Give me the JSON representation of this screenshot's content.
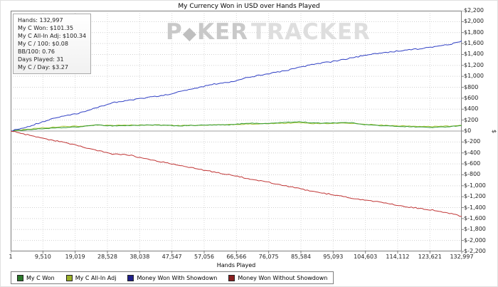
{
  "title": "My Currency Won in USD over Hands Played",
  "watermark": {
    "p1": "P",
    "diamond": "◆",
    "p2": "KER",
    "p3": "TRACKER"
  },
  "stats_box": {
    "lines": [
      "Hands: 132,997",
      "My C Won: $101.35",
      "My C All-In Adj: $100.34",
      "My C / 100: $0.08",
      "BB/100: 0.76",
      "Days Played: 31",
      "My C / Day: $3.27"
    ]
  },
  "axes": {
    "x_label": "Hands Played",
    "y_label": "$",
    "x_tick_labels": [
      "1",
      "9,510",
      "19,019",
      "28,528",
      "38,038",
      "47,547",
      "57,056",
      "66,566",
      "76,075",
      "85,584",
      "95,093",
      "104,603",
      "114,112",
      "123,621",
      "132,997"
    ],
    "x_tick_values": [
      1,
      9510,
      19019,
      28528,
      38038,
      47547,
      57056,
      66566,
      76075,
      85584,
      95093,
      104603,
      114112,
      123621,
      132997
    ],
    "y_tick_labels": [
      "$2,200",
      "$2,000",
      "$1,800",
      "$1,600",
      "$1,400",
      "$1,200",
      "$1,000",
      "$800",
      "$600",
      "$400",
      "$200",
      "$0",
      "$-200",
      "$-400",
      "$-600",
      "$-800",
      "$-1,000",
      "$-1,200",
      "$-1,400",
      "$-1,600",
      "$-1,800",
      "$-2,000",
      "$-2,200"
    ]
  },
  "legend": [
    {
      "label": "My C Won",
      "color": "#2d7a2d"
    },
    {
      "label": "My C All-In Adj",
      "color": "#9bb02a"
    },
    {
      "label": "Money Won With Showdown",
      "color": "#20208a"
    },
    {
      "label": "Money Won Without Showdown",
      "color": "#8a2020"
    }
  ],
  "chart_data": {
    "type": "line",
    "title": "My Currency Won in USD over Hands Played",
    "xlabel": "Hands Played",
    "ylabel": "$",
    "xlim": [
      1,
      132997
    ],
    "ylim": [
      -2200,
      2200
    ],
    "grid": true,
    "legend_position": "bottom-left",
    "x": [
      1,
      5000,
      10000,
      15000,
      20000,
      25000,
      30000,
      35000,
      40000,
      45000,
      50000,
      55000,
      60000,
      65000,
      70000,
      75000,
      80000,
      85000,
      90000,
      95000,
      100000,
      105000,
      110000,
      115000,
      120000,
      125000,
      130000,
      132997
    ],
    "series": [
      {
        "name": "My C Won",
        "color": "#339933",
        "values": [
          0,
          25,
          45,
          60,
          75,
          110,
          95,
          100,
          110,
          105,
          95,
          105,
          110,
          115,
          145,
          135,
          155,
          170,
          145,
          150,
          155,
          115,
          95,
          85,
          75,
          65,
          85,
          101
        ]
      },
      {
        "name": "My C All-In Adj",
        "color": "#a8c838",
        "values": [
          0,
          35,
          60,
          80,
          90,
          105,
          100,
          108,
          112,
          108,
          98,
          104,
          112,
          118,
          128,
          132,
          142,
          148,
          136,
          140,
          142,
          122,
          104,
          94,
          88,
          82,
          92,
          100
        ]
      },
      {
        "name": "Money Won With Showdown",
        "color": "#2f3fc4",
        "values": [
          0,
          80,
          180,
          270,
          320,
          420,
          520,
          560,
          610,
          650,
          720,
          790,
          860,
          900,
          980,
          1040,
          1090,
          1160,
          1230,
          1270,
          1330,
          1390,
          1430,
          1470,
          1500,
          1540,
          1590,
          1650
        ]
      },
      {
        "name": "Money Won Without Showdown",
        "color": "#c03434",
        "values": [
          0,
          -70,
          -140,
          -200,
          -270,
          -350,
          -420,
          -440,
          -510,
          -570,
          -630,
          -690,
          -750,
          -800,
          -870,
          -920,
          -990,
          -1050,
          -1120,
          -1160,
          -1220,
          -1270,
          -1310,
          -1370,
          -1410,
          -1450,
          -1510,
          -1560
        ]
      }
    ]
  }
}
